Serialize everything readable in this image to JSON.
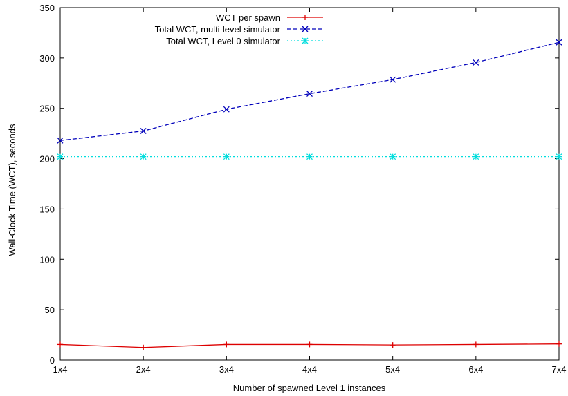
{
  "chart_data": {
    "type": "line",
    "title": "",
    "xlabel": "Number of spawned Level 1 instances",
    "ylabel": "Wall-Clock Time (WCT), seconds",
    "categories": [
      "1x4",
      "2x4",
      "3x4",
      "4x4",
      "5x4",
      "6x4",
      "7x4"
    ],
    "ylim": [
      0,
      350
    ],
    "yticks": [
      0,
      50,
      100,
      150,
      200,
      250,
      300,
      350
    ],
    "grid": false,
    "legend_position": "top-right",
    "series": [
      {
        "name": "WCT per spawn",
        "values": [
          15.5,
          12.5,
          15.5,
          15.5,
          15.0,
          15.5,
          16.0
        ],
        "color": "#dd0000",
        "dash": "solid",
        "marker": "plus"
      },
      {
        "name": "Total WCT, multi-level simulator",
        "values": [
          218,
          227.5,
          249,
          264.5,
          278.5,
          295.5,
          315.5
        ],
        "color": "#0000bb",
        "dash": "dashed",
        "marker": "cross"
      },
      {
        "name": "Total WCT, Level 0 simulator",
        "values": [
          202,
          202,
          202,
          202,
          202,
          202,
          202
        ],
        "color": "#00dddd",
        "dash": "dotted",
        "marker": "star"
      }
    ]
  }
}
